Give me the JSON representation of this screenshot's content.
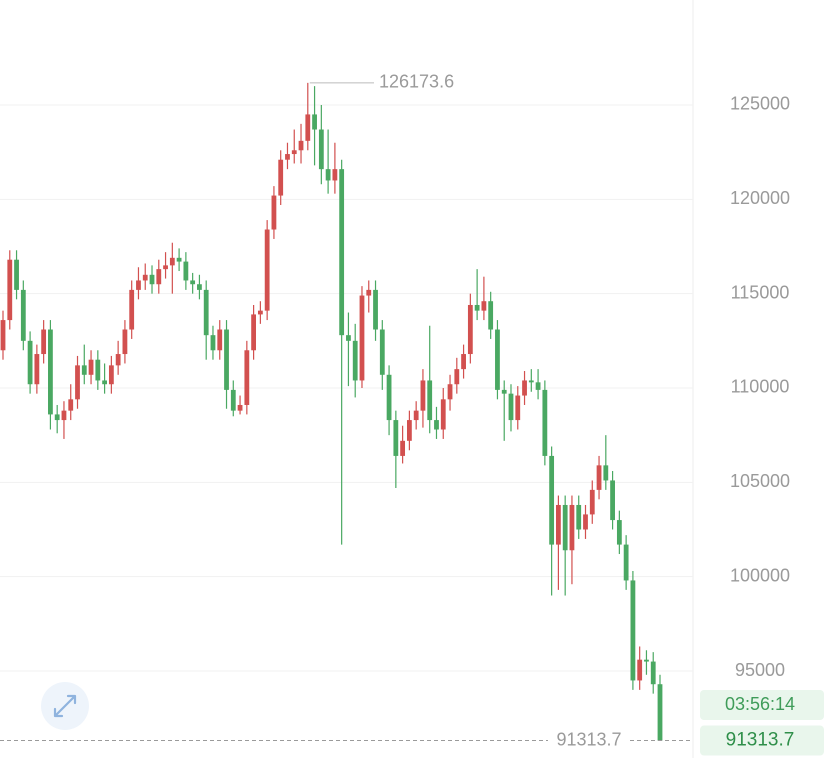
{
  "chart_data": {
    "type": "candlestick",
    "up_color": "#d2504f",
    "down_color": "#4aa862",
    "ylim": [
      90389,
      130565
    ],
    "yticks": [
      95000,
      100000,
      105000,
      110000,
      115000,
      120000,
      125000
    ],
    "grid": true,
    "countdown": "03:56:14",
    "max_index": 45,
    "last_index": 97,
    "open": [
      112000,
      113600,
      116800,
      115200,
      112500,
      110200,
      111800,
      113100,
      108600,
      108300,
      108800,
      109400,
      111200,
      110700,
      111500,
      110400,
      110200,
      111200,
      111800,
      113100,
      115200,
      115700,
      116000,
      115500,
      116300,
      116500,
      116900,
      116700,
      115700,
      115500,
      115200,
      112800,
      112000,
      113100,
      109900,
      108800,
      109100,
      112000,
      113900,
      114100,
      118400,
      120200,
      122100,
      122400,
      122600,
      123100,
      124500,
      123700,
      121600,
      121000,
      121600,
      112800,
      112500,
      110400,
      114900,
      115200,
      113100,
      110700,
      108300,
      106400,
      107200,
      108300,
      108800,
      110400,
      108300,
      107800,
      109400,
      110200,
      111000,
      111800,
      114400,
      114100,
      114600,
      113100,
      109900,
      109700,
      108300,
      109600,
      110400,
      110300,
      109900,
      106400,
      101700,
      103800,
      101400,
      103800,
      102500,
      103300,
      104600,
      105900,
      105100,
      103000,
      101700,
      99800,
      94500,
      95600,
      95500,
      94300
    ],
    "high": [
      114100,
      117300,
      117300,
      115700,
      113000,
      112300,
      113600,
      113600,
      109100,
      109300,
      110200,
      111700,
      112300,
      112000,
      112000,
      111300,
      111700,
      112500,
      113600,
      115700,
      116400,
      116600,
      116500,
      116800,
      117200,
      117700,
      117400,
      117200,
      116100,
      116000,
      115700,
      113300,
      113600,
      113600,
      110400,
      109600,
      112500,
      114400,
      114600,
      118900,
      120700,
      122600,
      123000,
      123700,
      124000,
      126173.6,
      126000,
      125000,
      123700,
      123000,
      122100,
      114000,
      113400,
      115400,
      115700,
      115700,
      113600,
      111200,
      108800,
      108000,
      108800,
      109300,
      111000,
      113300,
      109000,
      110000,
      110700,
      111600,
      112300,
      115000,
      116300,
      115900,
      115100,
      113600,
      110400,
      110200,
      110100,
      110900,
      111000,
      111000,
      110400,
      106900,
      104300,
      104300,
      104300,
      104300,
      103800,
      105100,
      106400,
      107500,
      105600,
      103500,
      102200,
      100300,
      96300,
      96100,
      96000,
      94800
    ],
    "low": [
      111500,
      113100,
      114700,
      112000,
      109700,
      109700,
      111300,
      107800,
      107600,
      107300,
      108300,
      108900,
      110200,
      110200,
      109900,
      109700,
      109700,
      110700,
      111300,
      112600,
      114700,
      115200,
      115000,
      115000,
      115800,
      115000,
      116200,
      115200,
      115000,
      114700,
      111500,
      111500,
      111500,
      108900,
      108500,
      108600,
      108600,
      111500,
      113400,
      113600,
      117900,
      119700,
      121600,
      121900,
      121900,
      122600,
      121800,
      120800,
      120300,
      120300,
      101700,
      110100,
      109500,
      110000,
      114000,
      112500,
      109900,
      107500,
      104700,
      106000,
      106700,
      107800,
      107900,
      107600,
      107300,
      107300,
      108800,
      109700,
      110500,
      111300,
      113600,
      113600,
      112600,
      109400,
      107200,
      107700,
      107800,
      109100,
      109800,
      109400,
      105900,
      99000,
      99300,
      99000,
      99600,
      102000,
      102000,
      102800,
      104100,
      104600,
      102500,
      101200,
      99300,
      94000,
      94000,
      94800,
      93800,
      91313.7
    ],
    "close": [
      113600,
      116800,
      115200,
      112500,
      110200,
      111800,
      113100,
      108600,
      108300,
      108800,
      109400,
      111200,
      110700,
      111500,
      110400,
      110200,
      111200,
      111800,
      113100,
      115200,
      115700,
      116000,
      115500,
      116300,
      116500,
      116900,
      116700,
      115700,
      115500,
      115200,
      112800,
      112000,
      113100,
      109900,
      108800,
      109100,
      112000,
      113900,
      114100,
      118400,
      120200,
      122100,
      122400,
      122600,
      123100,
      124500,
      123700,
      121600,
      121000,
      121600,
      112800,
      112500,
      110400,
      114900,
      115200,
      113100,
      110700,
      108300,
      106400,
      107200,
      108300,
      108800,
      110400,
      108300,
      107800,
      109400,
      110200,
      111000,
      111800,
      114400,
      114100,
      114600,
      113100,
      109900,
      109700,
      108300,
      109600,
      110400,
      110300,
      109900,
      106400,
      101700,
      103800,
      101400,
      103800,
      102500,
      103300,
      104600,
      105900,
      105100,
      103000,
      101700,
      99800,
      94500,
      95600,
      95500,
      94300,
      91313.7
    ]
  }
}
